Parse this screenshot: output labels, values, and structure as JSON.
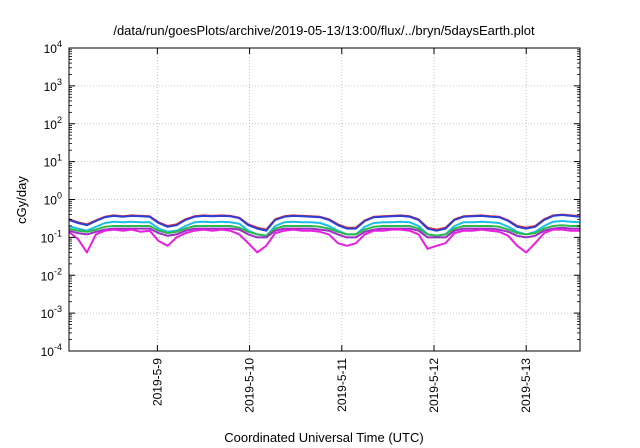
{
  "chart_data": {
    "type": "line",
    "title": "/data/run/goesPlots/archive/2019-05-13/13:00/flux/../bryn/5daysEarth.plot",
    "xlabel": "Coordinated Universal Time (UTC)",
    "ylabel": "cGy/day",
    "yscale": "log",
    "ylim": [
      0.0001,
      10000
    ],
    "y_ticks": [
      {
        "base": "10",
        "exp": "-4",
        "value": 0.0001
      },
      {
        "base": "10",
        "exp": "-3",
        "value": 0.001
      },
      {
        "base": "10",
        "exp": "-2",
        "value": 0.01
      },
      {
        "base": "10",
        "exp": "-1",
        "value": 0.1
      },
      {
        "base": "10",
        "exp": "0",
        "value": 1
      },
      {
        "base": "10",
        "exp": "1",
        "value": 10
      },
      {
        "base": "10",
        "exp": "2",
        "value": 100
      },
      {
        "base": "10",
        "exp": "3",
        "value": 1000
      },
      {
        "base": "10",
        "exp": "4",
        "value": 10000
      }
    ],
    "xlim": [
      "2019-05-08T01:00",
      "2019-05-13T14:00"
    ],
    "x_ticks": [
      {
        "label": "2019-5-9",
        "value": "2019-05-09T00:00"
      },
      {
        "label": "2019-5-10",
        "value": "2019-05-10T00:00"
      },
      {
        "label": "2019-5-11",
        "value": "2019-05-11T00:00"
      },
      {
        "label": "2019-5-12",
        "value": "2019-05-12T00:00"
      },
      {
        "label": "2019-5-13",
        "value": "2019-05-13T00:00"
      }
    ],
    "grid": true,
    "series": [
      {
        "color": "#e8282a",
        "values": [
          0.3,
          0.25,
          0.22,
          0.28,
          0.35,
          0.38,
          0.36,
          0.38,
          0.37,
          0.36,
          0.25,
          0.2,
          0.22,
          0.3,
          0.36,
          0.38,
          0.37,
          0.38,
          0.37,
          0.33,
          0.22,
          0.18,
          0.16,
          0.3,
          0.36,
          0.38,
          0.37,
          0.36,
          0.35,
          0.3,
          0.22,
          0.18,
          0.18,
          0.28,
          0.35,
          0.36,
          0.37,
          0.38,
          0.36,
          0.3,
          0.18,
          0.16,
          0.18,
          0.3,
          0.36,
          0.37,
          0.38,
          0.36,
          0.35,
          0.28,
          0.2,
          0.18,
          0.2,
          0.3,
          0.38,
          0.4,
          0.38,
          0.36
        ]
      },
      {
        "color": "#2a3fd6",
        "values": [
          0.29,
          0.24,
          0.21,
          0.27,
          0.34,
          0.37,
          0.35,
          0.37,
          0.36,
          0.35,
          0.24,
          0.19,
          0.21,
          0.29,
          0.35,
          0.37,
          0.36,
          0.37,
          0.36,
          0.32,
          0.21,
          0.17,
          0.15,
          0.29,
          0.35,
          0.37,
          0.36,
          0.35,
          0.34,
          0.29,
          0.21,
          0.17,
          0.17,
          0.27,
          0.34,
          0.35,
          0.36,
          0.37,
          0.35,
          0.29,
          0.17,
          0.15,
          0.17,
          0.29,
          0.35,
          0.36,
          0.37,
          0.35,
          0.34,
          0.27,
          0.19,
          0.17,
          0.19,
          0.29,
          0.37,
          0.39,
          0.37,
          0.35
        ]
      },
      {
        "color": "#1bbfe6",
        "values": [
          0.2,
          0.17,
          0.15,
          0.19,
          0.24,
          0.26,
          0.25,
          0.26,
          0.25,
          0.25,
          0.17,
          0.14,
          0.15,
          0.2,
          0.25,
          0.26,
          0.25,
          0.26,
          0.25,
          0.23,
          0.15,
          0.12,
          0.11,
          0.2,
          0.25,
          0.26,
          0.25,
          0.25,
          0.24,
          0.2,
          0.15,
          0.12,
          0.12,
          0.19,
          0.24,
          0.25,
          0.25,
          0.26,
          0.25,
          0.2,
          0.12,
          0.11,
          0.12,
          0.2,
          0.25,
          0.25,
          0.26,
          0.25,
          0.24,
          0.19,
          0.14,
          0.12,
          0.14,
          0.2,
          0.26,
          0.27,
          0.26,
          0.25
        ]
      },
      {
        "color": "#2db84a",
        "values": [
          0.17,
          0.15,
          0.14,
          0.16,
          0.19,
          0.2,
          0.2,
          0.2,
          0.2,
          0.2,
          0.15,
          0.13,
          0.14,
          0.17,
          0.2,
          0.2,
          0.2,
          0.2,
          0.2,
          0.18,
          0.14,
          0.12,
          0.11,
          0.17,
          0.2,
          0.2,
          0.2,
          0.2,
          0.19,
          0.17,
          0.14,
          0.12,
          0.12,
          0.16,
          0.19,
          0.2,
          0.2,
          0.2,
          0.2,
          0.17,
          0.12,
          0.11,
          0.12,
          0.17,
          0.2,
          0.2,
          0.2,
          0.2,
          0.19,
          0.16,
          0.13,
          0.12,
          0.13,
          0.17,
          0.2,
          0.21,
          0.2,
          0.2
        ]
      },
      {
        "color": "#9b2fc4",
        "values": [
          0.15,
          0.13,
          0.12,
          0.14,
          0.16,
          0.17,
          0.17,
          0.17,
          0.17,
          0.17,
          0.13,
          0.11,
          0.12,
          0.15,
          0.17,
          0.17,
          0.17,
          0.17,
          0.17,
          0.16,
          0.12,
          0.1,
          0.1,
          0.15,
          0.17,
          0.17,
          0.17,
          0.17,
          0.16,
          0.15,
          0.12,
          0.1,
          0.1,
          0.14,
          0.16,
          0.17,
          0.17,
          0.17,
          0.17,
          0.15,
          0.1,
          0.1,
          0.1,
          0.15,
          0.17,
          0.17,
          0.17,
          0.17,
          0.16,
          0.14,
          0.11,
          0.1,
          0.11,
          0.15,
          0.17,
          0.18,
          0.17,
          0.17
        ]
      },
      {
        "color": "#e81ee0",
        "values": [
          0.14,
          0.09,
          0.04,
          0.12,
          0.15,
          0.16,
          0.15,
          0.16,
          0.14,
          0.15,
          0.08,
          0.06,
          0.1,
          0.13,
          0.15,
          0.16,
          0.15,
          0.16,
          0.15,
          0.12,
          0.07,
          0.04,
          0.06,
          0.13,
          0.15,
          0.16,
          0.15,
          0.15,
          0.14,
          0.12,
          0.07,
          0.06,
          0.07,
          0.12,
          0.15,
          0.15,
          0.16,
          0.16,
          0.15,
          0.12,
          0.05,
          0.06,
          0.07,
          0.13,
          0.15,
          0.15,
          0.16,
          0.15,
          0.14,
          0.11,
          0.06,
          0.04,
          0.07,
          0.13,
          0.16,
          0.16,
          0.15,
          0.15
        ]
      }
    ]
  }
}
